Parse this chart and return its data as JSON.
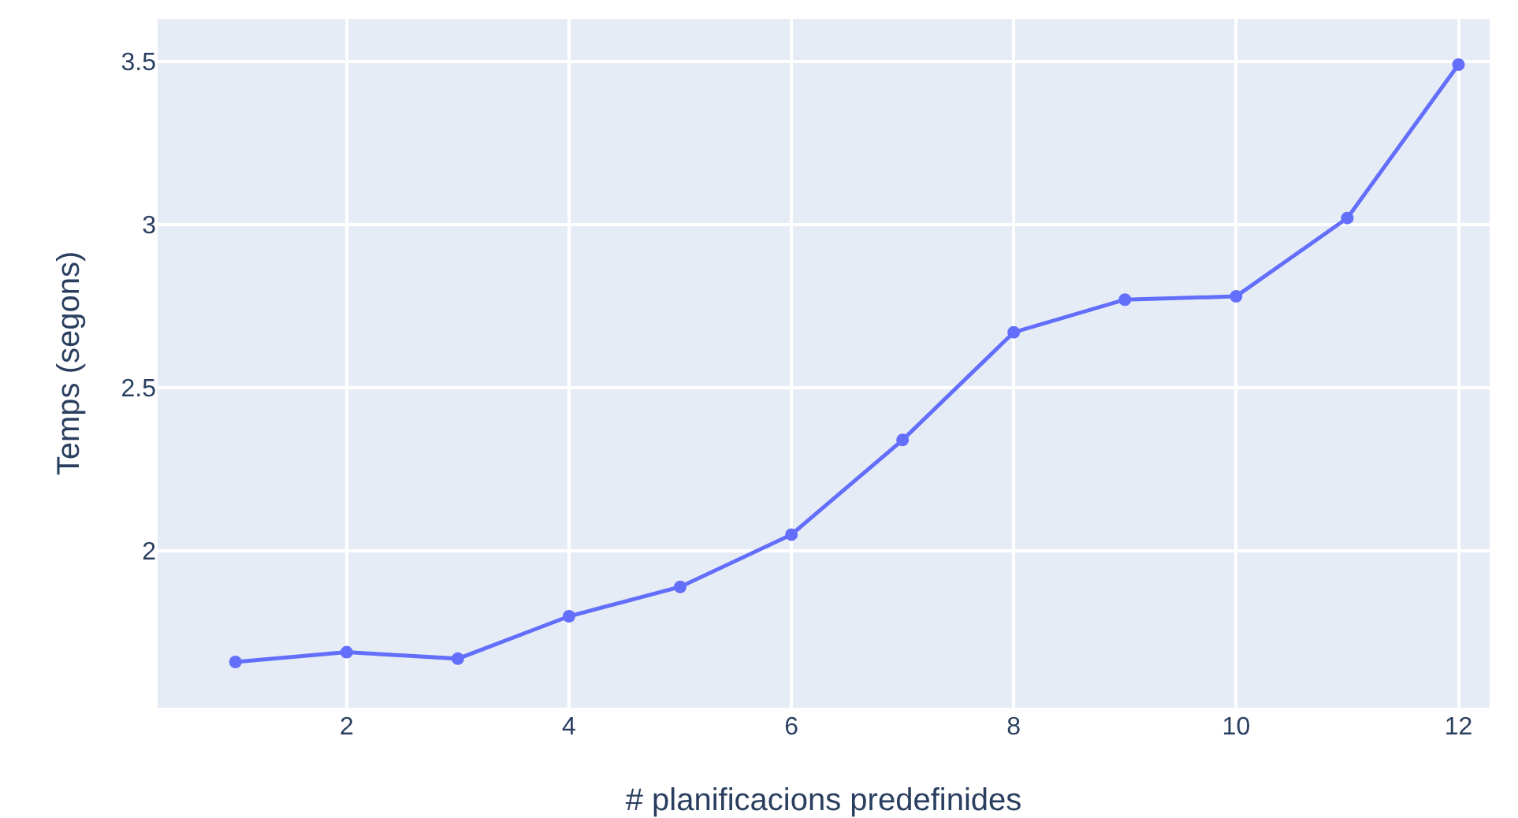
{
  "chart_data": {
    "type": "line",
    "xlabel": "# planificacions predefinides",
    "ylabel": "Temps (segons)",
    "x": [
      1,
      2,
      3,
      4,
      5,
      6,
      7,
      8,
      9,
      10,
      11,
      12
    ],
    "series": [
      {
        "color": "#636efa",
        "values": [
          1.66,
          1.69,
          1.67,
          1.8,
          1.89,
          2.05,
          2.34,
          2.67,
          2.77,
          2.78,
          3.02,
          3.49
        ]
      }
    ],
    "xlim": [
      0.3,
      12.28
    ],
    "xticks": [
      2,
      4,
      6,
      8,
      10,
      12
    ],
    "ylim": [
      1.52,
      3.63
    ],
    "yticks": [
      2,
      2.5,
      3,
      3.5
    ],
    "grid": true,
    "marker": "circle",
    "line_style": "solid"
  }
}
